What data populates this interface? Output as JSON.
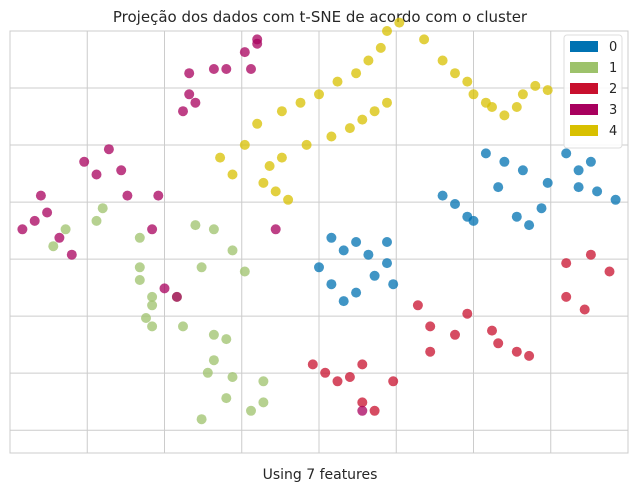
{
  "chart_data": {
    "type": "scatter",
    "title": "Projeção dos dados com t-SNE de acordo com o cluster",
    "xlabel": "Using 7 features",
    "ylabel": "",
    "grid": true,
    "legend_placement": "top-right",
    "xlim": [
      -50,
      50
    ],
    "ylim": [
      -50,
      50
    ],
    "series": [
      {
        "name": "0",
        "color": "#0072b2",
        "x": [
          0,
          2,
          4,
          6,
          9,
          12,
          4,
          2,
          6,
          8,
          11,
          11,
          20,
          22,
          24,
          25,
          29,
          32,
          34,
          36,
          37,
          40,
          42,
          45,
          48,
          42,
          44,
          33,
          30,
          27
        ],
        "y": [
          -6,
          -10,
          -14,
          -12,
          -8,
          -10,
          -2,
          1,
          0,
          -3,
          -5,
          0,
          11,
          9,
          6,
          5,
          13,
          6,
          4,
          8,
          14,
          21,
          17,
          12,
          10,
          13,
          19,
          17,
          19,
          21
        ]
      },
      {
        "name": "1",
        "color": "#9dc26b",
        "x": [
          -43,
          -41,
          -36,
          -35,
          -29,
          -29,
          -29,
          -27,
          -27,
          -20,
          -17,
          -14,
          -12,
          -19,
          -23,
          -17,
          -17,
          -14,
          -9,
          -11,
          -9,
          -18,
          -15,
          -15,
          -19,
          -27,
          -28,
          -22
        ],
        "y": [
          -1,
          3,
          5,
          8,
          1,
          -6,
          -9,
          -13,
          -20,
          4,
          3,
          -2,
          -7,
          -6,
          -13,
          -22,
          -28,
          -32,
          -38,
          -40,
          -33,
          -31,
          -23,
          -37,
          -42,
          -15,
          -18,
          -20
        ]
      },
      {
        "name": "2",
        "color": "#c8102e",
        "x": [
          -1,
          1,
          3,
          5,
          7,
          7,
          9,
          12,
          16,
          18,
          18,
          22,
          24,
          28,
          29,
          32,
          34,
          40,
          44,
          47,
          40,
          43
        ],
        "y": [
          -29,
          -31,
          -33,
          -32,
          -29,
          -38,
          -40,
          -33,
          -15,
          -20,
          -26,
          -22,
          -17,
          -21,
          -24,
          -26,
          -27,
          -5,
          -3,
          -7,
          -13,
          -16
        ]
      },
      {
        "name": "3",
        "color": "#a8005e",
        "x": [
          -48,
          -46,
          -44,
          -45,
          -42,
          -40,
          -38,
          -36,
          -34,
          -32,
          -31,
          -26,
          -22,
          -20,
          -21,
          -21,
          -17,
          -11,
          -15,
          -10,
          -12,
          -10,
          -7,
          -27,
          -25,
          -23,
          7
        ],
        "y": [
          3,
          5,
          7,
          11,
          1,
          -3,
          19,
          16,
          22,
          17,
          11,
          11,
          31,
          33,
          35,
          40,
          41,
          41,
          41,
          47,
          45,
          48,
          3,
          3,
          -11,
          -13,
          -40
        ]
      },
      {
        "name": "4",
        "color": "#d8c000",
        "x": [
          -16,
          -12,
          -10,
          -6,
          -3,
          0,
          3,
          6,
          8,
          10,
          11,
          13,
          17,
          20,
          22,
          24,
          25,
          27,
          28,
          30,
          32,
          33,
          35,
          37,
          -8,
          -6,
          -2,
          2,
          5,
          7,
          9,
          11,
          -14,
          -9,
          -7,
          -5
        ],
        "y": [
          20,
          23,
          28,
          31,
          33,
          35,
          38,
          40,
          43,
          46,
          50,
          52,
          48,
          43,
          40,
          38,
          35,
          33,
          32,
          30,
          32,
          35,
          37,
          36,
          18,
          20,
          23,
          25,
          27,
          29,
          31,
          33,
          16,
          14,
          12,
          10
        ]
      }
    ]
  }
}
